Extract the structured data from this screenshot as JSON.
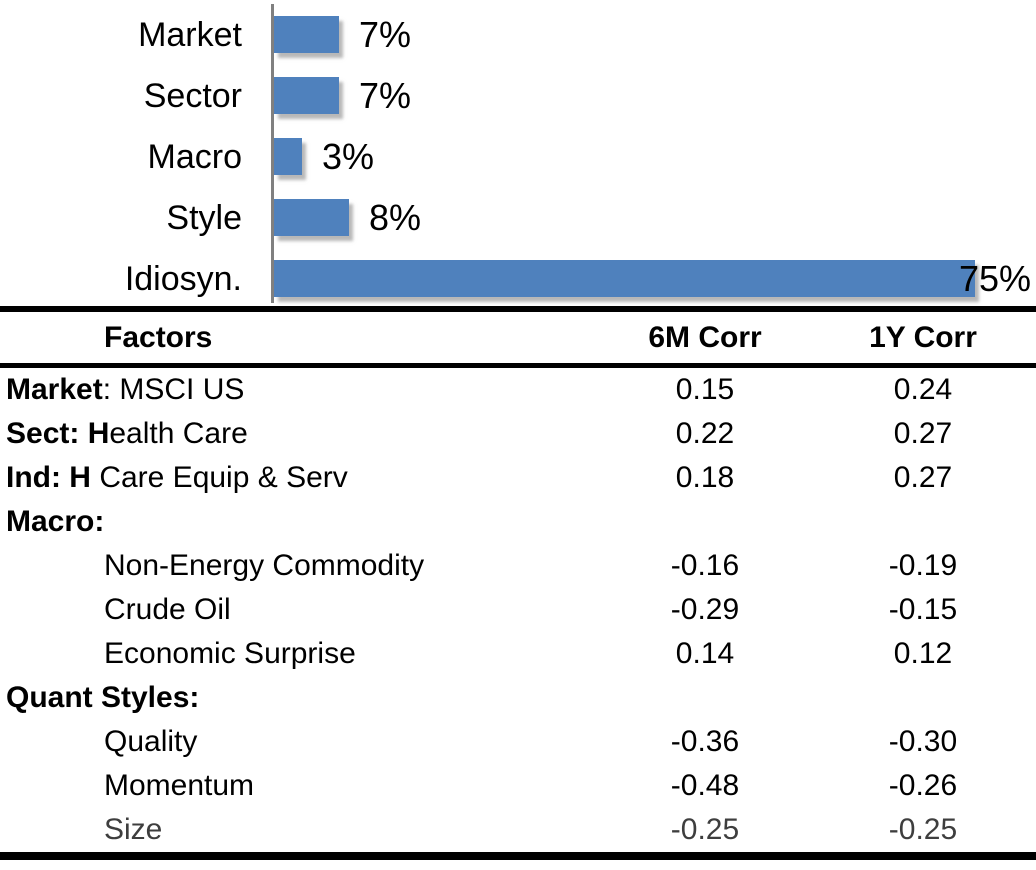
{
  "chart_data": [
    {
      "type": "bar",
      "orientation": "horizontal",
      "title": "",
      "categories": [
        "Market",
        "Sector",
        "Macro",
        "Style",
        "Idiosyn."
      ],
      "values": [
        7,
        7,
        3,
        8,
        75
      ],
      "value_labels": [
        "7%",
        "7%",
        "3%",
        "8%",
        "75%"
      ],
      "xlim": [
        0,
        80
      ],
      "grid": false,
      "legend": false,
      "bar_color": "#4F81BD",
      "axis_color": "#808080",
      "label_color": "#000000"
    },
    {
      "type": "table",
      "columns": [
        "Factors",
        "6M Corr",
        "1Y Corr"
      ],
      "rows": [
        {
          "factor_bold": "Market",
          "factor_rest": ": MSCI US",
          "indent": false,
          "muted": false,
          "corr_6m": "0.15",
          "corr_1y": "0.24"
        },
        {
          "factor_bold": "Sect: H",
          "factor_rest": "ealth Care",
          "indent": false,
          "muted": false,
          "corr_6m": "0.22",
          "corr_1y": "0.27"
        },
        {
          "factor_bold": "Ind: H",
          "factor_rest": " Care Equip & Serv",
          "indent": false,
          "muted": false,
          "corr_6m": "0.18",
          "corr_1y": "0.27"
        },
        {
          "factor_bold": "Macro:",
          "factor_rest": "",
          "indent": false,
          "muted": false,
          "corr_6m": "",
          "corr_1y": ""
        },
        {
          "factor_bold": "",
          "factor_rest": "Non-Energy Commodity",
          "indent": true,
          "muted": false,
          "corr_6m": "-0.16",
          "corr_1y": "-0.19"
        },
        {
          "factor_bold": "",
          "factor_rest": "Crude Oil",
          "indent": true,
          "muted": false,
          "corr_6m": "-0.29",
          "corr_1y": "-0.15"
        },
        {
          "factor_bold": "",
          "factor_rest": "Economic Surprise",
          "indent": true,
          "muted": false,
          "corr_6m": "0.14",
          "corr_1y": "0.12"
        },
        {
          "factor_bold": "Quant Styles:",
          "factor_rest": "",
          "indent": false,
          "muted": false,
          "corr_6m": "",
          "corr_1y": ""
        },
        {
          "factor_bold": "",
          "factor_rest": "Quality",
          "indent": true,
          "muted": false,
          "corr_6m": "-0.36",
          "corr_1y": "-0.30"
        },
        {
          "factor_bold": "",
          "factor_rest": "Momentum",
          "indent": true,
          "muted": false,
          "corr_6m": "-0.48",
          "corr_1y": "-0.26"
        },
        {
          "factor_bold": "",
          "factor_rest": "Size",
          "indent": true,
          "muted": true,
          "corr_6m": "-0.25",
          "corr_1y": "-0.25"
        }
      ]
    }
  ]
}
